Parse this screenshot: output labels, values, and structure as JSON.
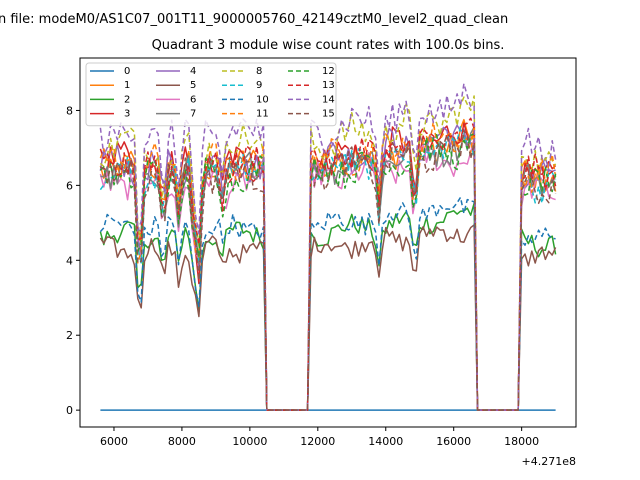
{
  "chart_data": {
    "type": "line",
    "suptitle": "n file: modeM0/AS1C07_001T11_9000005760_42149cztM0_level2_quad_clean",
    "title": "Quadrant 3 module wise count rates with 100.0s bins.",
    "xlabel": "",
    "ylabel": "",
    "x_offset_label": "+4.271e8",
    "xlim": [
      5000,
      19600
    ],
    "ylim": [
      -0.45,
      9.4
    ],
    "x_ticks": [
      6000,
      8000,
      10000,
      12000,
      14000,
      16000,
      18000
    ],
    "y_ticks": [
      0,
      2,
      4,
      6,
      8
    ],
    "grid": false,
    "legend_placement": "upper-left",
    "legend_columns": 4,
    "x_range": [
      5600,
      19000
    ],
    "gaps": [
      [
        10500,
        11700
      ],
      [
        16700,
        17900
      ]
    ],
    "series": [
      {
        "name": "0",
        "color": "#1f77b4",
        "style": "solid",
        "flat_zero": true
      },
      {
        "name": "1",
        "color": "#ff7f0e",
        "style": "solid",
        "level": 6.5
      },
      {
        "name": "2",
        "color": "#2ca02c",
        "style": "solid",
        "level": 4.7
      },
      {
        "name": "3",
        "color": "#d62728",
        "style": "solid",
        "level": 6.6
      },
      {
        "name": "4",
        "color": "#9467bd",
        "style": "solid",
        "level": 6.6
      },
      {
        "name": "5",
        "color": "#8c564b",
        "style": "solid",
        "level": 4.3
      },
      {
        "name": "6",
        "color": "#e377c2",
        "style": "solid",
        "level": 6.1
      },
      {
        "name": "7",
        "color": "#7f7f7f",
        "style": "solid",
        "level": 6.4
      },
      {
        "name": "8",
        "color": "#bcbd22",
        "style": "dashed",
        "level": 7.1
      },
      {
        "name": "9",
        "color": "#17becf",
        "style": "dashed",
        "level": 6.4
      },
      {
        "name": "10",
        "color": "#1f77b4",
        "style": "dashed",
        "level": 4.9
      },
      {
        "name": "11",
        "color": "#ff7f0e",
        "style": "dashed",
        "level": 6.6
      },
      {
        "name": "12",
        "color": "#2ca02c",
        "style": "dashed",
        "level": 6.3
      },
      {
        "name": "13",
        "color": "#d62728",
        "style": "dashed",
        "level": 6.6
      },
      {
        "name": "14",
        "color": "#9467bd",
        "style": "dashed",
        "level": 7.4
      },
      {
        "name": "15",
        "color": "#8c564b",
        "style": "dashed",
        "level": 6.3
      }
    ]
  }
}
